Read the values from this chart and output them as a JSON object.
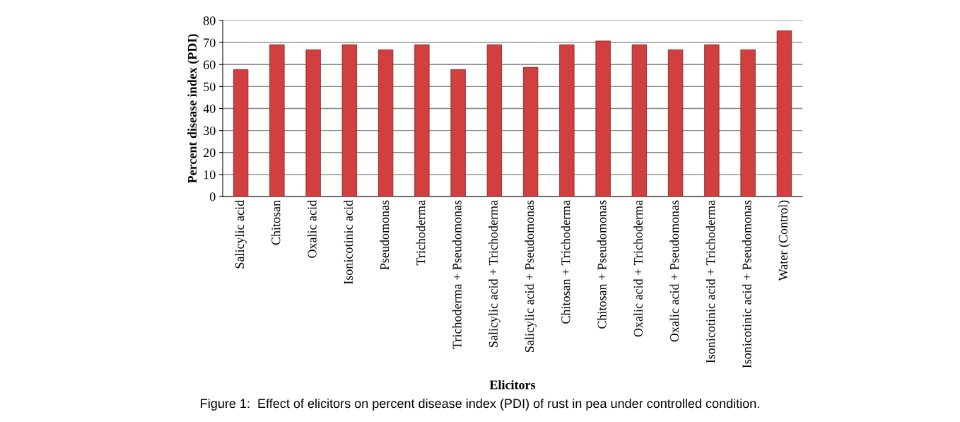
{
  "chart_data": {
    "type": "bar",
    "xlabel": "Elicitors",
    "ylabel": "Percent disease index (PDI)",
    "categories": [
      "Salicylic acid",
      "Chitosan",
      "Oxalic acid",
      "Isonicotinic acid",
      "Pseudomonas",
      "Trichoderma",
      "Trichoderma + Pseudomonas",
      "Salicylic acid + Trichoderma",
      "Salicylic acid + Pseudomonas",
      "Chitosan + Trichoderma",
      "Chitosan + Pseudomonas",
      "Oxalic acid + Trichoderma",
      "Oxalic acid + Pseudomonas",
      "Isonicotinic acid + Trichoderma",
      "Isonicotinic acid + Pseudomonas",
      "Water (Control)"
    ],
    "values": [
      57.7,
      69,
      66.7,
      69,
      66.7,
      69,
      57.7,
      69,
      58.7,
      69,
      70.7,
      69,
      66.7,
      69,
      66.7,
      75.3
    ],
    "color": "#d23f3f",
    "ylim": [
      0,
      80
    ],
    "yticks": [
      0,
      10,
      20,
      30,
      40,
      50,
      60,
      70,
      80
    ],
    "grid": "y",
    "legend": false,
    "annotations": [
      "Figure 1:  Effect of elicitors on percent disease index (PDI) of rust in pea under controlled condition."
    ]
  }
}
